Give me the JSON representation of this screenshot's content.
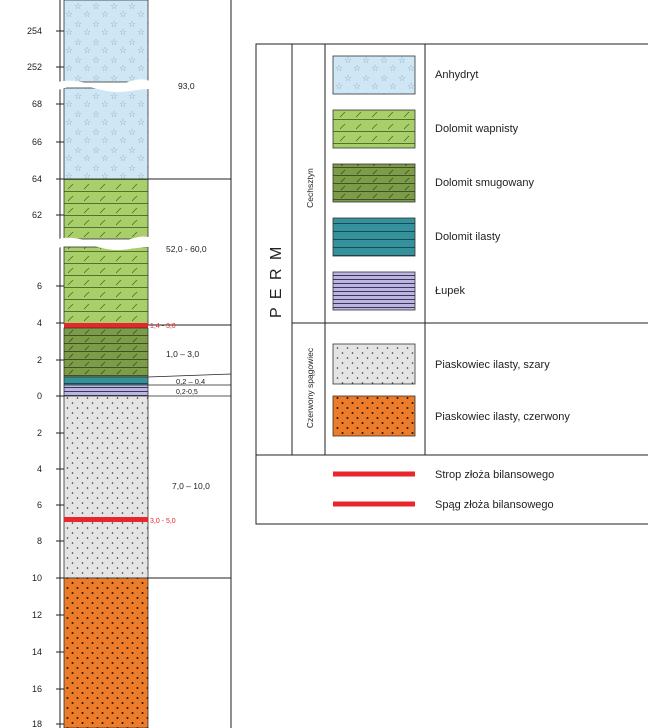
{
  "column": {
    "depth_ticks": [
      "254",
      "252",
      "68",
      "66",
      "64",
      "62",
      "6",
      "4",
      "2",
      "0",
      "2",
      "4",
      "6",
      "8",
      "10",
      "12",
      "14",
      "16",
      "18"
    ],
    "thicknesses": {
      "anhydrite": "93,0",
      "dolomite": "52,0 - 60,0",
      "lower_dolomite": "1,0 – 3,0",
      "thin_a": "0,2 – 0,4",
      "thin_b": "0,2-0,5",
      "sandstone_grey": "7,0 – 10,0"
    },
    "red_labels": {
      "roof": "1,4 - 3,0",
      "floor": "3,0 - 5,0"
    }
  },
  "legend": {
    "era": "P E R M",
    "groups": [
      {
        "name": "Cechsztyn",
        "items": [
          {
            "label": "Anhydryt",
            "pattern": "anhydrite"
          },
          {
            "label": "Dolomit wapnisty",
            "pattern": "lightgreen-dolomite"
          },
          {
            "label": "Dolomit smugowany",
            "pattern": "olive-dolomite"
          },
          {
            "label": "Dolomit ilasty",
            "pattern": "teal-dolomite"
          },
          {
            "label": "Łupek",
            "pattern": "shale"
          }
        ]
      },
      {
        "name": "Czerwony spągowiec",
        "items": [
          {
            "label": "Piaskowiec ilasty, szary",
            "pattern": "grey-sandstone"
          },
          {
            "label": "Piaskowiec ilasty, czerwony",
            "pattern": "red-sandstone"
          }
        ]
      }
    ],
    "lines": [
      {
        "label": "Strop złoża bilansowego",
        "color": "#e8272d"
      },
      {
        "label": "Spąg złoża bilansowego",
        "color": "#e8272d"
      }
    ]
  },
  "colors": {
    "anhydrite": "#cfe6f5",
    "lightgreen": "#a8cf6a",
    "olive": "#7d9c4a",
    "teal": "#35929c",
    "shale": "#bcb6dd",
    "grey": "#e4e4e4",
    "orange": "#ec7c2a",
    "red_line": "#e8272d"
  }
}
